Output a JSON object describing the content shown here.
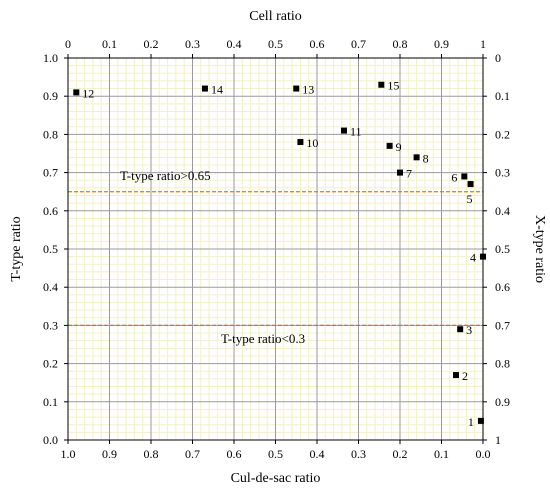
{
  "chart_data": {
    "type": "scatter",
    "axes": {
      "top": {
        "label": "Cell ratio",
        "range": [
          0,
          1
        ],
        "ticks": [
          "0",
          "0.1",
          "0.2",
          "0.3",
          "0.4",
          "0.5",
          "0.6",
          "0.7",
          "0.8",
          "0.9",
          "1"
        ]
      },
      "bottom": {
        "label": "Cul-de-sac ratio",
        "range": [
          1,
          0
        ],
        "ticks": [
          "1.0",
          "0.9",
          "0.8",
          "0.7",
          "0.6",
          "0.5",
          "0.4",
          "0.3",
          "0.2",
          "0.1",
          "0.0"
        ]
      },
      "left": {
        "label": "T-type ratio",
        "range": [
          0,
          1
        ],
        "ticks": [
          "0.0",
          "0.1",
          "0.2",
          "0.3",
          "0.4",
          "0.5",
          "0.6",
          "0.7",
          "0.8",
          "0.9",
          "1.0"
        ]
      },
      "right": {
        "label": "X-type ratio",
        "range": [
          1,
          0
        ],
        "ticks": [
          "1",
          "0.9",
          "0.8",
          "0.7",
          "0.6",
          "0.5",
          "0.4",
          "0.3",
          "0.2",
          "0.1",
          "0"
        ]
      }
    },
    "grid": true,
    "points": [
      {
        "label": "1",
        "x": 0.995,
        "y": 0.05
      },
      {
        "label": "2",
        "x": 0.935,
        "y": 0.17
      },
      {
        "label": "3",
        "x": 0.945,
        "y": 0.29
      },
      {
        "label": "4",
        "x": 1.0,
        "y": 0.48
      },
      {
        "label": "5",
        "x": 0.97,
        "y": 0.67
      },
      {
        "label": "6",
        "x": 0.955,
        "y": 0.69
      },
      {
        "label": "7",
        "x": 0.8,
        "y": 0.7
      },
      {
        "label": "8",
        "x": 0.84,
        "y": 0.74
      },
      {
        "label": "9",
        "x": 0.775,
        "y": 0.77
      },
      {
        "label": "10",
        "x": 0.56,
        "y": 0.78
      },
      {
        "label": "11",
        "x": 0.665,
        "y": 0.81
      },
      {
        "label": "12",
        "x": 0.02,
        "y": 0.91
      },
      {
        "label": "13",
        "x": 0.55,
        "y": 0.92
      },
      {
        "label": "14",
        "x": 0.33,
        "y": 0.92
      },
      {
        "label": "15",
        "x": 0.755,
        "y": 0.93
      }
    ],
    "reference_lines": [
      {
        "y": 0.65,
        "label": "T-type ratio>0.65",
        "color": "#f08020"
      },
      {
        "y": 0.3,
        "label": "T-type ratio<0.3",
        "color": "#e06a20"
      }
    ],
    "marker_color": "#000000",
    "grid_color": "#9a9a9a",
    "minor_grid_color": "#f1f1c8"
  }
}
